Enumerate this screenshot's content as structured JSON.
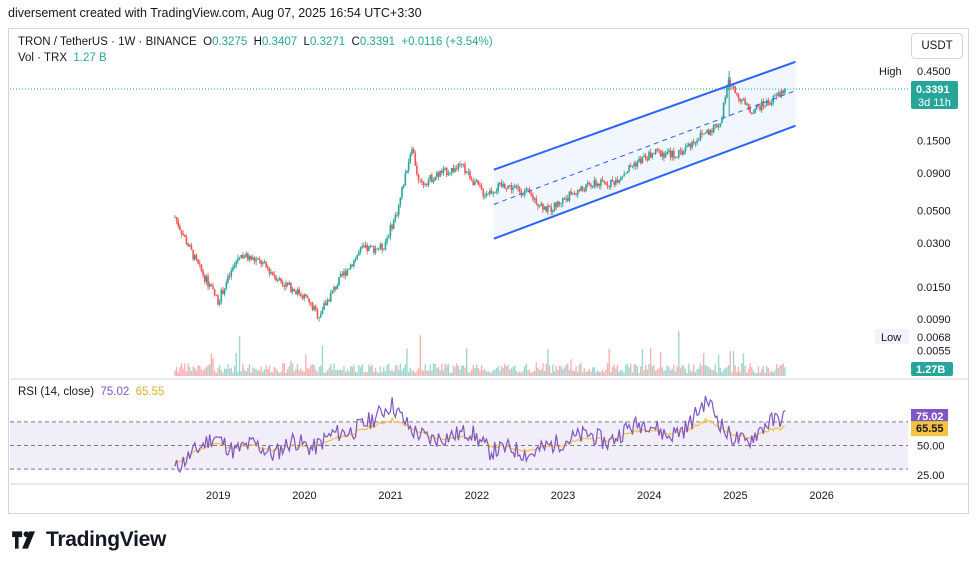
{
  "header": {
    "creator_line": "diversement created with TradingView.com, Aug 07, 2025 16:54 UTC+3:30"
  },
  "symbol": {
    "title": "TRON / TetherUS · 1W · BINANCE",
    "o_label": "O",
    "o": "0.3275",
    "h_label": "H",
    "h": "0.3407",
    "l_label": "L",
    "l": "0.3271",
    "c_label": "C",
    "c": "0.3391",
    "change": "+0.0116 (+3.54%)"
  },
  "volume": {
    "label": "Vol · TRX",
    "value": "1.27 B",
    "badge": "1.27B"
  },
  "currency": "USDT",
  "price_axis": {
    "high_label": "High",
    "high_value": "0.4500",
    "low_label": "Low",
    "low_value": "0.0068",
    "last_price": "0.3391",
    "countdown": "3d 11h",
    "ticks": [
      "0.1500",
      "0.0900",
      "0.0500",
      "0.0300",
      "0.0150",
      "0.0090",
      "0.0055"
    ]
  },
  "rsi": {
    "label": "RSI (14, close)",
    "rsi_value": "75.02",
    "ma_value": "65.55",
    "ticks": [
      "50.00",
      "25.00"
    ]
  },
  "time_axis": [
    "2019",
    "2020",
    "2021",
    "2022",
    "2023",
    "2024",
    "2025",
    "2026"
  ],
  "brand": "TradingView",
  "colors": {
    "up": "#26a69a",
    "down": "#ef5350",
    "channel": "#2962ff",
    "rsi": "#7e57c2",
    "rsi_ma": "#f5c242"
  },
  "chart_data": [
    {
      "type": "candlestick",
      "title": "TRON / TetherUS · 1W · BINANCE",
      "scale": "log",
      "x": [
        "2018-07",
        "2018-10",
        "2019-01",
        "2019-04",
        "2019-07",
        "2019-10",
        "2020-01",
        "2020-03",
        "2020-06",
        "2020-09",
        "2020-12",
        "2021-02",
        "2021-04",
        "2021-05",
        "2021-08",
        "2021-11",
        "2022-02",
        "2022-05",
        "2022-08",
        "2022-11",
        "2023-02",
        "2023-05",
        "2023-08",
        "2023-11",
        "2024-02",
        "2024-05",
        "2024-08",
        "2024-11",
        "2024-12",
        "2025-03",
        "2025-06",
        "2025-08"
      ],
      "close": [
        0.045,
        0.022,
        0.012,
        0.025,
        0.022,
        0.016,
        0.013,
        0.0095,
        0.017,
        0.027,
        0.028,
        0.05,
        0.14,
        0.075,
        0.09,
        0.1,
        0.065,
        0.075,
        0.066,
        0.05,
        0.064,
        0.075,
        0.078,
        0.105,
        0.125,
        0.12,
        0.16,
        0.2,
        0.38,
        0.24,
        0.28,
        0.3391
      ],
      "high_label": 0.45,
      "low_label": 0.0068,
      "ylim": [
        0.005,
        0.6
      ],
      "channel": {
        "upper": [
          [
            2022.2,
            0.095
          ],
          [
            2025.7,
            0.52
          ]
        ],
        "mid": [
          [
            2022.2,
            0.055
          ],
          [
            2025.7,
            0.33
          ]
        ],
        "lower": [
          [
            2022.2,
            0.032
          ],
          [
            2025.7,
            0.19
          ]
        ]
      }
    },
    {
      "type": "line",
      "title": "RSI (14, close)",
      "series": [
        {
          "name": "RSI",
          "values": [
            30,
            45,
            58,
            45,
            52,
            42,
            55,
            47,
            60,
            62,
            72,
            85,
            63,
            55,
            58,
            62,
            45,
            48,
            42,
            50,
            55,
            60,
            52,
            65,
            70,
            58,
            65,
            90,
            60,
            52,
            68,
            75.02
          ]
        },
        {
          "name": "RSI MA",
          "values": [
            35,
            44,
            52,
            48,
            50,
            46,
            50,
            48,
            55,
            60,
            66,
            72,
            65,
            57,
            56,
            58,
            50,
            48,
            46,
            49,
            52,
            56,
            54,
            60,
            64,
            60,
            62,
            72,
            62,
            56,
            62,
            65.55
          ]
        }
      ],
      "ylim": [
        20,
        90
      ]
    }
  ]
}
